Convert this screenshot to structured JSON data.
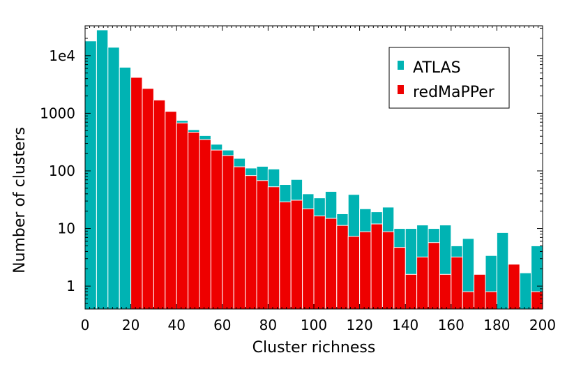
{
  "chart_data": {
    "type": "bar",
    "xlabel": "Cluster richness",
    "ylabel": "Number of clusters",
    "xlim": [
      0,
      200
    ],
    "ylim": [
      0.4,
      33000
    ],
    "yscale": "log",
    "bin_width": 5,
    "bin_edges_start": 0,
    "x_ticks": [
      "0",
      "20",
      "40",
      "60",
      "80",
      "100",
      "120",
      "140",
      "160",
      "180",
      "200"
    ],
    "y_ticks": [
      "1",
      "10",
      "100",
      "1000",
      "1e4"
    ],
    "legend_position": "upper-right",
    "series": [
      {
        "name": "ATLAS",
        "color": "#00b3b3",
        "values": [
          18000,
          28000,
          14000,
          6300,
          3900,
          2450,
          1600,
          1000,
          750,
          520,
          410,
          290,
          230,
          165,
          112,
          120,
          108,
          58,
          71,
          40,
          34,
          44,
          18,
          39,
          22,
          19.5,
          23.5,
          10,
          10,
          11.5,
          10,
          11.5,
          5,
          6.7,
          0,
          3.4,
          8.5,
          0,
          1.7,
          5
        ]
      },
      {
        "name": "redMaPPer",
        "color": "#ee0000",
        "values": [
          0,
          0,
          0,
          0,
          4200,
          2700,
          1700,
          1080,
          680,
          470,
          350,
          230,
          185,
          118,
          83,
          68,
          53,
          29,
          31,
          22,
          16.5,
          15,
          11.3,
          7.3,
          8.8,
          12,
          8.8,
          4.7,
          1.6,
          3.2,
          5.7,
          1.6,
          3.2,
          0.8,
          1.6,
          0.8,
          0,
          2.4,
          0,
          0.8
        ]
      }
    ]
  }
}
